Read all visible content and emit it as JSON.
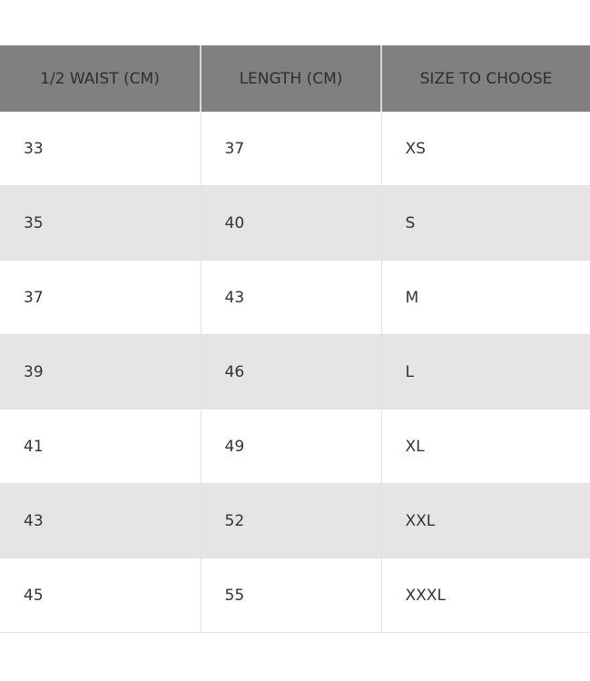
{
  "table": {
    "headers": [
      "1/2 WAIST (CM)",
      "LENGTH (CM)",
      "SIZE TO CHOOSE"
    ],
    "rows": [
      [
        "33",
        "37",
        "XS"
      ],
      [
        "35",
        "40",
        "S"
      ],
      [
        "37",
        "43",
        "M"
      ],
      [
        "39",
        "46",
        "L"
      ],
      [
        "41",
        "49",
        "XL"
      ],
      [
        "43",
        "52",
        "XXL"
      ],
      [
        "45",
        "55",
        "XXXL"
      ]
    ]
  },
  "colors": {
    "header_bg": "#808080",
    "stripe_bg": "#e5e5e5"
  }
}
